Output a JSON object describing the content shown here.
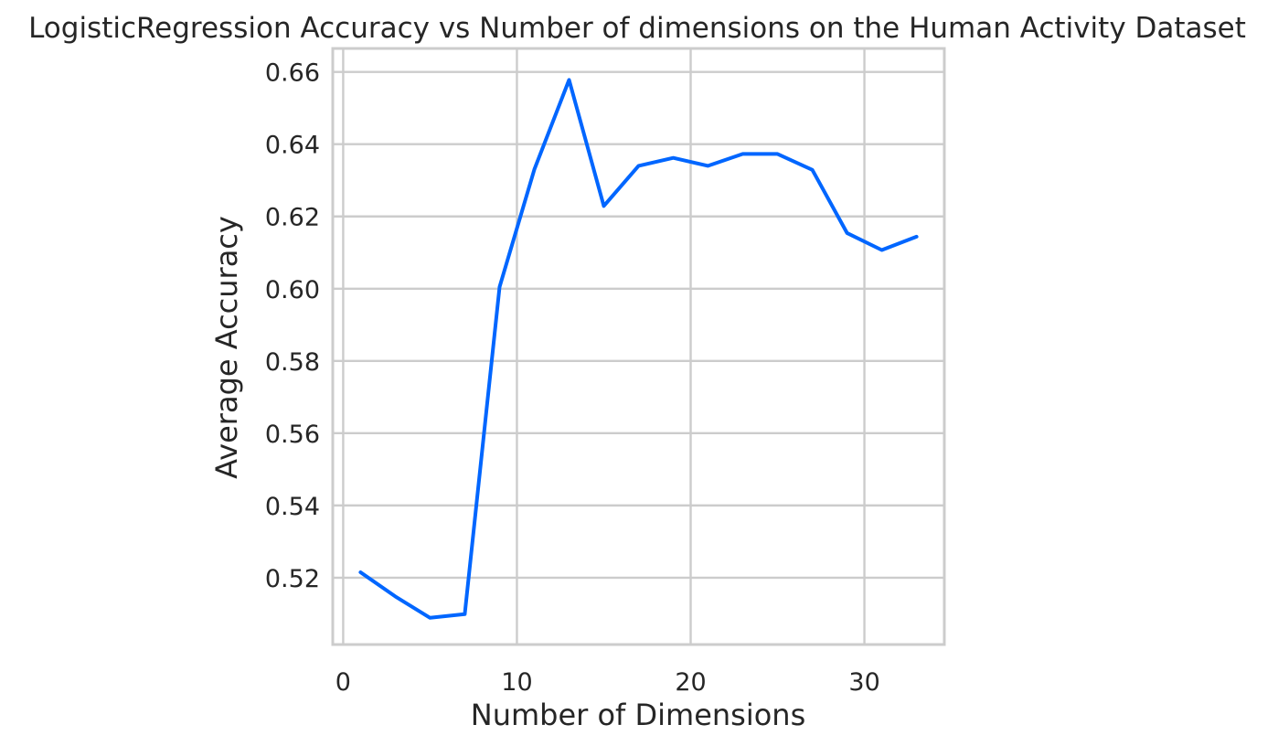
{
  "chart_data": {
    "type": "line",
    "title": "LogisticRegression Accuracy vs Number of dimensions on the Human Activity Dataset",
    "xlabel": "Number of Dimensions",
    "ylabel": "Average Accuracy",
    "xlim": [
      -0.6,
      34.6
    ],
    "ylim": [
      0.5015,
      0.6665
    ],
    "x_ticks": [
      0,
      10,
      20,
      30
    ],
    "y_ticks": [
      0.52,
      0.54,
      0.56,
      0.58,
      0.6,
      0.62,
      0.64,
      0.66
    ],
    "x_tick_labels": [
      "0",
      "10",
      "20",
      "30"
    ],
    "y_tick_labels": [
      "0.52",
      "0.54",
      "0.56",
      "0.58",
      "0.60",
      "0.62",
      "0.64",
      "0.66"
    ],
    "grid": true,
    "legend": "none",
    "series": [
      {
        "color": "#0066ff",
        "x": [
          1,
          3,
          5,
          7,
          9,
          11,
          13,
          15,
          17,
          19,
          21,
          23,
          25,
          27,
          29,
          31,
          33
        ],
        "values": [
          0.5215,
          0.5148,
          0.5089,
          0.5099,
          0.6005,
          0.633,
          0.6578,
          0.6229,
          0.634,
          0.6362,
          0.634,
          0.6373,
          0.6373,
          0.6329,
          0.6154,
          0.6107,
          0.6144
        ]
      }
    ]
  }
}
